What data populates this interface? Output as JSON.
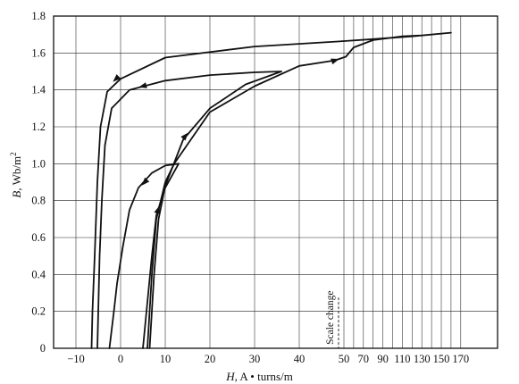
{
  "chart_data": {
    "type": "line",
    "title": "",
    "xlabel": {
      "italic": "H",
      "rest": ", A • turns/m"
    },
    "ylabel": {
      "italic": "B",
      "rest": ", Wb/m",
      "sup": "2"
    },
    "x_axis": {
      "scale": "piecewise-linear (scale change at 50)",
      "xlim": [
        -15,
        175
      ],
      "breakpoint": 50,
      "ticks_left": [
        -10,
        0,
        10,
        20,
        30,
        40,
        50
      ],
      "ticks_right": [
        50,
        70,
        90,
        110,
        130,
        150,
        170
      ],
      "labels": [
        "-10",
        "0",
        "10",
        "20",
        "30",
        "40",
        "50",
        "70",
        "90",
        "110",
        "130",
        "150",
        "170"
      ],
      "label_values": [
        -10,
        0,
        10,
        20,
        30,
        40,
        50,
        70,
        90,
        110,
        130,
        150,
        170
      ]
    },
    "y_axis": {
      "ylim": [
        0,
        1.8
      ],
      "ticks": [
        0,
        0.2,
        0.4,
        0.6,
        0.8,
        1.0,
        1.2,
        1.4,
        1.6,
        1.8
      ],
      "labels": [
        "0",
        "0.2",
        "0.4",
        "0.6",
        "0.8",
        "1.0",
        "1.2",
        "1.4",
        "1.6",
        "1.8"
      ]
    },
    "grid": true,
    "annotation": "Scale change",
    "series": [
      {
        "points": [
          [
            6,
            0
          ],
          [
            7,
            0.4
          ],
          [
            8,
            0.7
          ],
          [
            10,
            0.9
          ],
          [
            12,
            1.0
          ],
          [
            20,
            1.28
          ],
          [
            30,
            1.42
          ],
          [
            40,
            1.53
          ],
          [
            48,
            1.56
          ],
          [
            52,
            1.58
          ],
          [
            60,
            1.63
          ],
          [
            80,
            1.67
          ],
          [
            110,
            1.69
          ],
          [
            130,
            1.695
          ],
          [
            160,
            1.71
          ],
          [
            120,
            1.69
          ],
          [
            80,
            1.675
          ],
          [
            52,
            1.665
          ],
          [
            30,
            1.635
          ],
          [
            10,
            1.575
          ],
          [
            0,
            1.46
          ],
          [
            -3,
            1.39
          ],
          [
            -4.5,
            1.2
          ],
          [
            -5.2,
            0.9
          ],
          [
            -5.8,
            0.5
          ],
          [
            -6.3,
            0.2
          ],
          [
            -6.5,
            0
          ]
        ],
        "arrows_at": [
          [
            48,
            1.56
          ],
          [
            -1,
            1.46
          ]
        ]
      },
      {
        "points": [
          [
            6.5,
            0
          ],
          [
            7.5,
            0.4
          ],
          [
            8.5,
            0.7
          ],
          [
            10,
            0.88
          ],
          [
            14,
            1.13
          ],
          [
            20,
            1.3
          ],
          [
            28,
            1.43
          ],
          [
            36,
            1.5
          ],
          [
            30,
            1.495
          ],
          [
            20,
            1.48
          ],
          [
            10,
            1.45
          ],
          [
            2,
            1.4
          ],
          [
            -2,
            1.3
          ],
          [
            -3.5,
            1.1
          ],
          [
            -4.2,
            0.8
          ],
          [
            -4.7,
            0.5
          ],
          [
            -5,
            0.2
          ],
          [
            -5.2,
            0
          ]
        ],
        "arrows_at": [
          [
            14.5,
            1.15
          ],
          [
            5,
            1.42
          ]
        ]
      },
      {
        "points": [
          [
            5,
            0
          ],
          [
            6,
            0.25
          ],
          [
            7,
            0.5
          ],
          [
            8,
            0.72
          ],
          [
            10,
            0.87
          ],
          [
            13,
            1.0
          ],
          [
            10,
            0.99
          ],
          [
            7,
            0.95
          ],
          [
            4,
            0.87
          ],
          [
            2,
            0.75
          ],
          [
            0.5,
            0.55
          ],
          [
            -0.8,
            0.35
          ],
          [
            -1.5,
            0.2
          ],
          [
            -2.5,
            0
          ]
        ],
        "arrows_at": [
          [
            8.4,
            0.75
          ],
          [
            5.4,
            0.9
          ]
        ]
      }
    ]
  }
}
